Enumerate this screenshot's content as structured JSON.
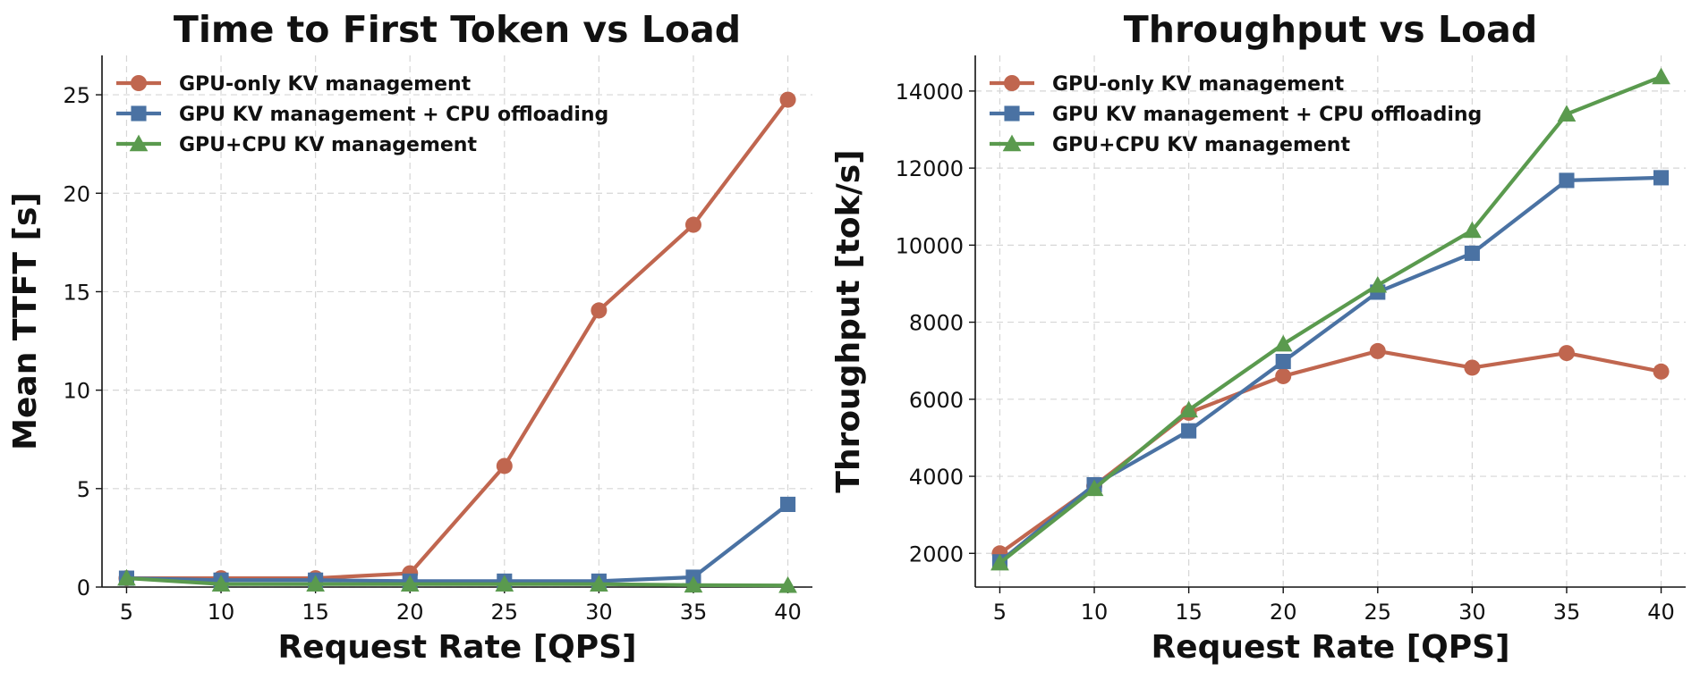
{
  "chart_data": [
    {
      "type": "line",
      "title": "Time to First Token vs Load",
      "xlabel": "Request Rate [QPS]",
      "ylabel": "Mean TTFT [s]",
      "x": [
        5,
        10,
        15,
        20,
        25,
        30,
        35,
        40
      ],
      "xticks": [
        "5",
        "10",
        "15",
        "20",
        "25",
        "30",
        "35",
        "40"
      ],
      "xlim": [
        3.7,
        41.3
      ],
      "ylim": [
        0,
        27
      ],
      "yticks": [
        0,
        5,
        10,
        15,
        20,
        25
      ],
      "ytick_labels": [
        "0",
        "5",
        "10",
        "15",
        "20",
        "25"
      ],
      "grid": true,
      "legend_position": "top-left",
      "series": [
        {
          "name": "GPU-only KV management",
          "color": "#c0664f",
          "marker": "circle",
          "values": [
            0.45,
            0.45,
            0.45,
            0.7,
            6.15,
            14.05,
            18.4,
            24.75
          ]
        },
        {
          "name": "GPU KV management + CPU offloading",
          "color": "#4a72a3",
          "marker": "square",
          "values": [
            0.45,
            0.35,
            0.35,
            0.3,
            0.3,
            0.3,
            0.5,
            4.2
          ]
        },
        {
          "name": "GPU+CPU KV management",
          "color": "#5a9a4e",
          "marker": "triangle",
          "values": [
            0.45,
            0.15,
            0.15,
            0.15,
            0.15,
            0.15,
            0.1,
            0.08
          ]
        }
      ]
    },
    {
      "type": "line",
      "title": "Throughput vs Load",
      "xlabel": "Request Rate [QPS]",
      "ylabel": "Throughput [tok/s]",
      "x": [
        5,
        10,
        15,
        20,
        25,
        30,
        35,
        40
      ],
      "xticks": [
        "5",
        "10",
        "15",
        "20",
        "25",
        "30",
        "35",
        "40"
      ],
      "xlim": [
        3.7,
        41.3
      ],
      "ylim": [
        1125,
        14925
      ],
      "yticks": [
        2000,
        4000,
        6000,
        8000,
        10000,
        12000,
        14000
      ],
      "ytick_labels": [
        "2000",
        "4000",
        "6000",
        "8000",
        "10000",
        "12000",
        "14000"
      ],
      "grid": true,
      "legend_position": "top-left",
      "series": [
        {
          "name": "GPU-only KV management",
          "color": "#c0664f",
          "marker": "circle",
          "values": [
            2000,
            3750,
            5650,
            6600,
            7250,
            6820,
            7200,
            6720
          ]
        },
        {
          "name": "GPU KV management + CPU offloading",
          "color": "#4a72a3",
          "marker": "square",
          "values": [
            1780,
            3780,
            5180,
            6980,
            8780,
            9790,
            11680,
            11750
          ]
        },
        {
          "name": "GPU+CPU KV management",
          "color": "#5a9a4e",
          "marker": "triangle",
          "values": [
            1750,
            3680,
            5720,
            7430,
            8960,
            10380,
            13400,
            14370
          ]
        }
      ]
    }
  ]
}
